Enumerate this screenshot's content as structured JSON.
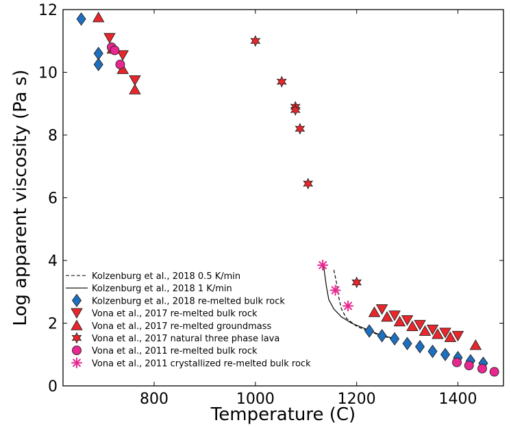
{
  "chart_data": {
    "type": "scatter",
    "xlabel": "Temperature (C)",
    "ylabel": "Log apparent viscosity (Pa s)",
    "xlim": [
      620,
      1490
    ],
    "ylim": [
      0,
      12
    ],
    "xticks": [
      800,
      1000,
      1200,
      1400
    ],
    "yticks": [
      0,
      2,
      4,
      6,
      8,
      10,
      12
    ],
    "grid": false,
    "legend_position": "bottom-left",
    "series": [
      {
        "name": "Kolzenburg et al., 2018 0.5 K/min",
        "kind": "line",
        "style": "dashed",
        "color": "#000000",
        "x": [
          1155,
          1160,
          1165,
          1170,
          1180,
          1200,
          1230,
          1260,
          1280
        ],
        "y": [
          3.7,
          3.3,
          2.8,
          2.45,
          2.15,
          1.9,
          1.7,
          1.55,
          1.45
        ]
      },
      {
        "name": "Kolzenburg et al., 2018 1 K/min",
        "kind": "line",
        "style": "solid",
        "color": "#000000",
        "x": [
          1135,
          1140,
          1145,
          1155,
          1170,
          1190,
          1220,
          1250,
          1280
        ],
        "y": [
          3.8,
          3.2,
          2.75,
          2.45,
          2.2,
          2.0,
          1.8,
          1.6,
          1.5
        ]
      },
      {
        "name": "Kolzenburg et al., 2018 re-melted bulk rock",
        "kind": "marker",
        "marker": "diamond",
        "color": "#1f6fbf",
        "x": [
          656,
          690,
          690,
          1225,
          1250,
          1275,
          1300,
          1325,
          1350,
          1375,
          1400,
          1425,
          1450
        ],
        "y": [
          11.7,
          10.6,
          10.25,
          1.75,
          1.6,
          1.5,
          1.35,
          1.25,
          1.1,
          1.0,
          0.9,
          0.8,
          0.72
        ]
      },
      {
        "name": "Vona et al., 2017 re-melted bulk rock",
        "kind": "marker",
        "marker": "triangle-down",
        "color": "#e8262b",
        "x": [
          712,
          738,
          762,
          1250,
          1275,
          1300,
          1325,
          1350,
          1375,
          1400
        ],
        "y": [
          11.1,
          10.55,
          9.75,
          2.45,
          2.25,
          2.1,
          1.95,
          1.8,
          1.7,
          1.6
        ]
      },
      {
        "name": "Vona et al., 2017 re-melted groundmass",
        "kind": "marker",
        "marker": "triangle-up",
        "color": "#e8262b",
        "x": [
          690,
          718,
          738,
          762,
          1235,
          1260,
          1285,
          1310,
          1335,
          1360,
          1385,
          1435
        ],
        "y": [
          11.75,
          10.75,
          10.1,
          9.45,
          2.35,
          2.2,
          2.05,
          1.9,
          1.75,
          1.65,
          1.55,
          1.3
        ]
      },
      {
        "name": "Vona et al., 2017 natural three phase lava",
        "kind": "marker",
        "marker": "hexagram",
        "color": "#e8262b",
        "x": [
          1000,
          1052,
          1079,
          1079,
          1088,
          1104,
          1200
        ],
        "y": [
          11.0,
          9.7,
          8.9,
          8.8,
          8.2,
          6.45,
          3.3
        ]
      },
      {
        "name": "Vona et al., 2011 re-melted bulk rock",
        "kind": "marker",
        "marker": "circle",
        "color": "#e8278f",
        "x": [
          716,
          722,
          733,
          1398,
          1422,
          1448,
          1472
        ],
        "y": [
          10.8,
          10.7,
          10.25,
          0.75,
          0.65,
          0.55,
          0.45
        ]
      },
      {
        "name": "Vona et al., 2011 crystallized re-melted bulk rock",
        "kind": "marker",
        "marker": "asterisk",
        "color": "#e8278f",
        "x": [
          1133,
          1158,
          1183
        ],
        "y": [
          3.85,
          3.05,
          2.55
        ]
      }
    ]
  }
}
